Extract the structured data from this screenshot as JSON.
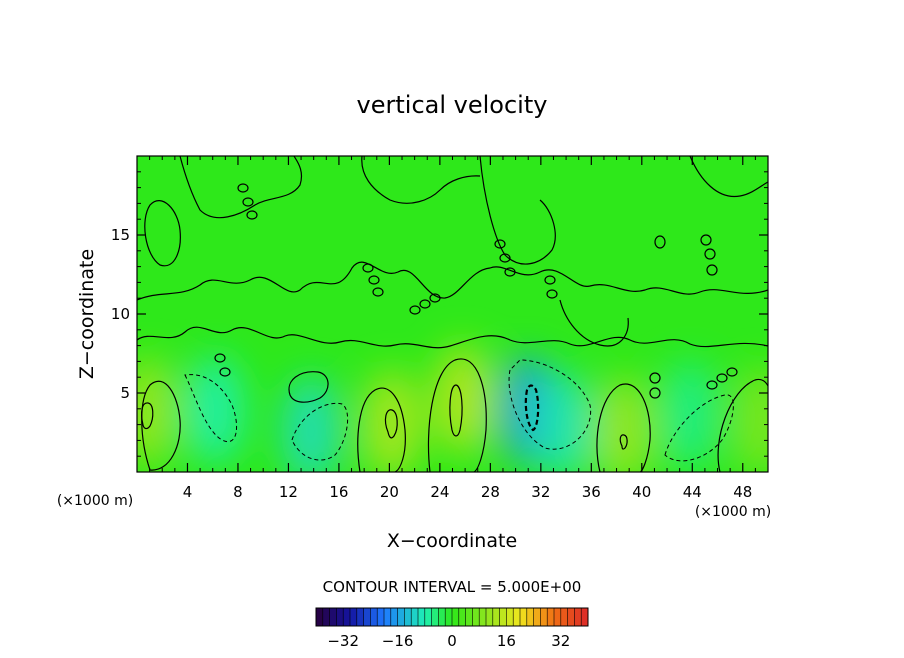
{
  "chart_data": {
    "type": "heatmap",
    "title": "vertical velocity",
    "xlabel": "X−coordinate",
    "ylabel": "Z−coordinate",
    "x_unit_label": "(×1000 m)",
    "z_unit_label": "(×1000 m)",
    "xlim": [
      0,
      50
    ],
    "ylim": [
      0,
      20
    ],
    "x_ticks": [
      4,
      8,
      12,
      16,
      20,
      24,
      28,
      32,
      36,
      40,
      44,
      48
    ],
    "y_ticks": [
      5,
      10,
      15
    ],
    "contour_interval_label": "CONTOUR INTERVAL = 5.000E+00",
    "colorbar": {
      "range": [
        -40,
        40
      ],
      "ticks": [
        -32,
        -16,
        0,
        16,
        32
      ]
    },
    "features": [
      {
        "x": 0.8,
        "z": 3.8,
        "value": 12
      },
      {
        "x": 6.2,
        "z": 3.9,
        "value": -8
      },
      {
        "x": 13.8,
        "z": 2.6,
        "value": -10
      },
      {
        "x": 20.2,
        "z": 3.0,
        "value": 14
      },
      {
        "x": 25.8,
        "z": 4.6,
        "value": 15
      },
      {
        "x": 31.0,
        "z": 3.9,
        "value": -16
      },
      {
        "x": 33.8,
        "z": 2.9,
        "value": -9
      },
      {
        "x": 38.6,
        "z": 2.6,
        "value": 12
      },
      {
        "x": 43.8,
        "z": 3.6,
        "value": -6
      },
      {
        "x": 49.5,
        "z": 3.2,
        "value": 9
      }
    ]
  }
}
